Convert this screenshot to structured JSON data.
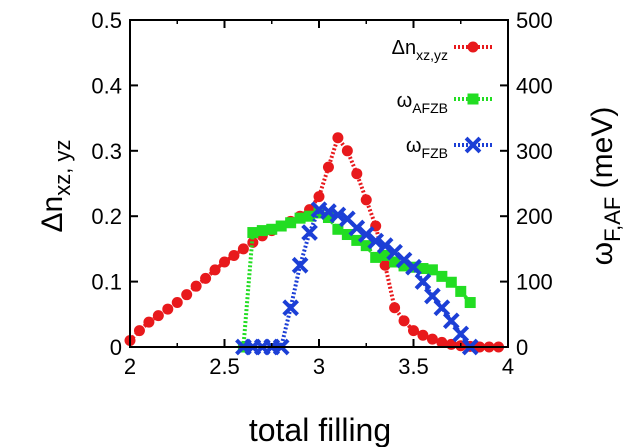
{
  "chart_data": {
    "type": "line",
    "xlabel": "total filling",
    "ylabel_left": {
      "base": "Δn",
      "sub": "xz, yz"
    },
    "ylabel_right": {
      "base": "ω",
      "sub": "F,AF",
      "unit": " (meV)"
    },
    "xlim": [
      2,
      4
    ],
    "ylim_left": [
      0,
      0.5
    ],
    "ylim_right": [
      0,
      500
    ],
    "x_ticks": [
      "2",
      "2.5",
      "3",
      "3.5",
      "4"
    ],
    "y_left_ticks": [
      "0",
      "0.1",
      "0.2",
      "0.3",
      "0.4",
      "0.5"
    ],
    "y_right_ticks": [
      "0",
      "100",
      "200",
      "300",
      "400",
      "500"
    ],
    "grid": false,
    "legend_placement": "top-right",
    "series": [
      {
        "name": "Δn",
        "name_sub": "xz,yz",
        "axis": "left",
        "color": "#e8191c",
        "marker": "circle",
        "x": [
          2.0,
          2.05,
          2.1,
          2.15,
          2.2,
          2.25,
          2.3,
          2.35,
          2.4,
          2.45,
          2.5,
          2.55,
          2.6,
          2.65,
          2.7,
          2.75,
          2.8,
          2.85,
          2.9,
          2.95,
          3.0,
          3.05,
          3.1,
          3.15,
          3.2,
          3.25,
          3.3,
          3.35,
          3.4,
          3.45,
          3.5,
          3.55,
          3.6,
          3.65,
          3.7,
          3.75,
          3.8,
          3.85,
          3.9,
          3.95
        ],
        "y": [
          0.01,
          0.025,
          0.038,
          0.048,
          0.058,
          0.068,
          0.08,
          0.093,
          0.105,
          0.118,
          0.13,
          0.14,
          0.15,
          0.16,
          0.17,
          0.178,
          0.185,
          0.192,
          0.2,
          0.21,
          0.23,
          0.275,
          0.32,
          0.3,
          0.265,
          0.225,
          0.185,
          0.125,
          0.06,
          0.04,
          0.025,
          0.018,
          0.012,
          0.007,
          0.004,
          0.002,
          0.001,
          0.0,
          0.0,
          0.0
        ]
      },
      {
        "name": "ω",
        "name_sub": "AFZB",
        "axis": "right",
        "color": "#22dd22",
        "marker": "square",
        "x": [
          2.6,
          2.65,
          2.7,
          2.75,
          2.8,
          2.85,
          2.9,
          2.95,
          3.0,
          3.05,
          3.1,
          3.15,
          3.2,
          3.25,
          3.3,
          3.35,
          3.4,
          3.45,
          3.5,
          3.55,
          3.6,
          3.65,
          3.7,
          3.75,
          3.8
        ],
        "y": [
          0,
          175,
          178,
          180,
          185,
          190,
          197,
          200,
          205,
          198,
          180,
          172,
          163,
          155,
          137,
          140,
          130,
          124,
          122,
          120,
          118,
          108,
          99,
          85,
          68
        ]
      },
      {
        "name": "ω",
        "name_sub": "FZB",
        "axis": "right",
        "color": "#1c3fd6",
        "marker": "x",
        "x": [
          2.6,
          2.65,
          2.7,
          2.75,
          2.8,
          2.85,
          2.9,
          2.95,
          3.0,
          3.05,
          3.1,
          3.15,
          3.2,
          3.25,
          3.3,
          3.35,
          3.4,
          3.45,
          3.5,
          3.55,
          3.6,
          3.65,
          3.7,
          3.75,
          3.8
        ],
        "y": [
          0,
          0,
          0,
          0,
          0,
          60,
          125,
          175,
          210,
          207,
          202,
          196,
          182,
          172,
          162,
          155,
          145,
          133,
          122,
          100,
          78,
          60,
          40,
          20,
          0
        ]
      }
    ]
  }
}
